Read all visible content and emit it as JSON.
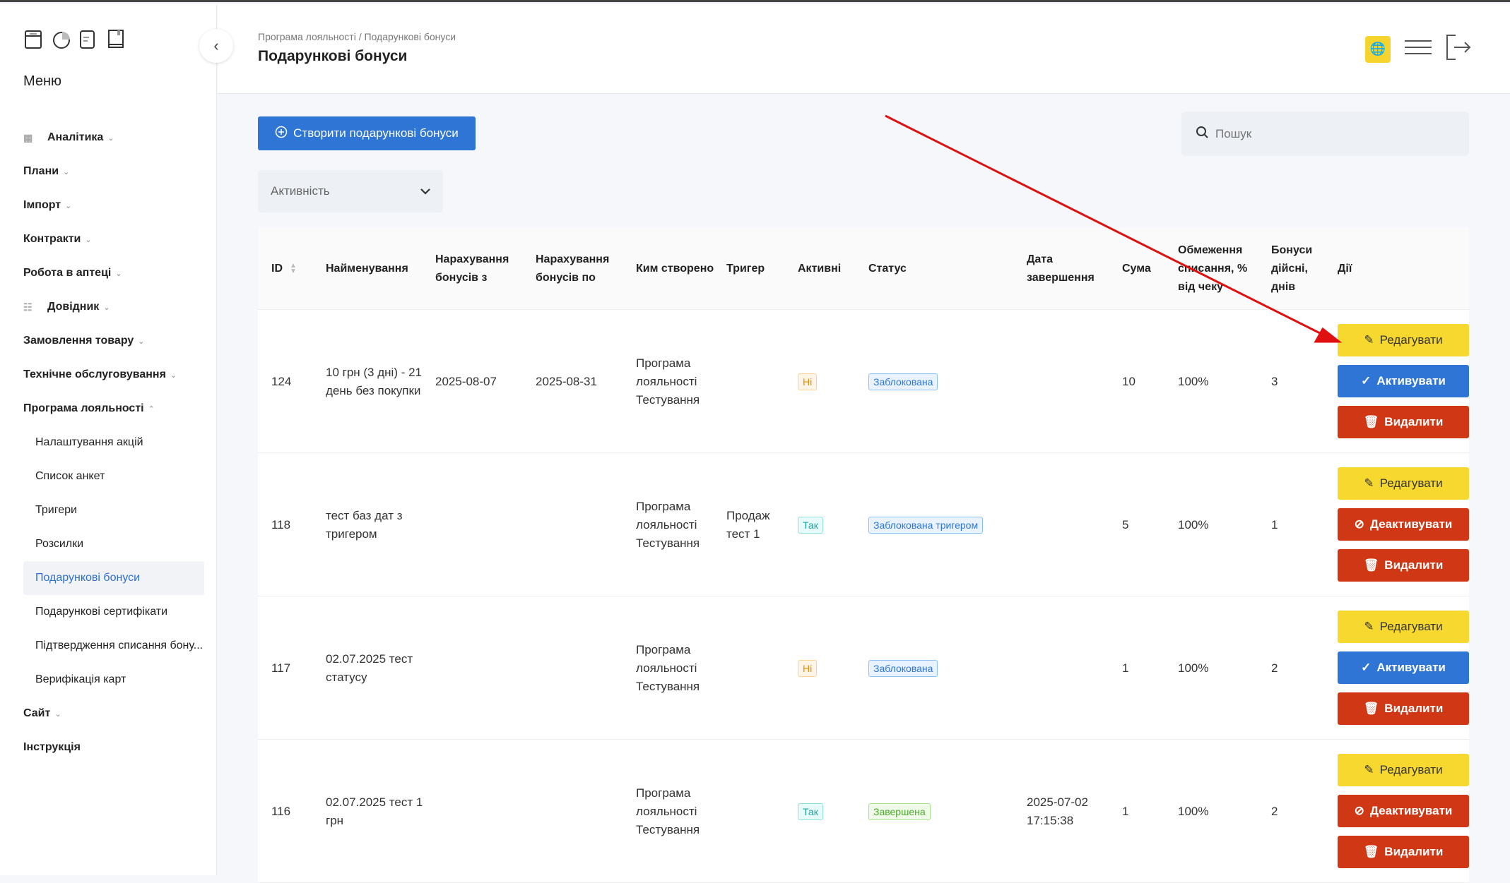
{
  "sidebar": {
    "menu_title": "Меню",
    "items": [
      {
        "label": "Аналітика",
        "icon": "grid-icon",
        "chevron": "⌄"
      },
      {
        "label": "Плани",
        "chevron": "⌄"
      },
      {
        "label": "Імпорт",
        "chevron": "⌄"
      },
      {
        "label": "Контракти",
        "chevron": "⌄"
      },
      {
        "label": "Робота в аптеці",
        "chevron": "⌄"
      },
      {
        "label": "Довідник",
        "icon": "list-icon",
        "chevron": "⌄"
      },
      {
        "label": "Замовлення товару",
        "chevron": "⌄"
      },
      {
        "label": "Технічне обслуговування",
        "chevron": "⌄"
      },
      {
        "label": "Програма лояльності",
        "chevron": "⌃"
      },
      {
        "label": "Налаштування акцій",
        "sub": true
      },
      {
        "label": "Список анкет",
        "sub": true
      },
      {
        "label": "Тригери",
        "sub": true
      },
      {
        "label": "Розсилки",
        "sub": true
      },
      {
        "label": "Подарункові бонуси",
        "sub": true,
        "active": true
      },
      {
        "label": "Подарункові сертифікати",
        "sub": true
      },
      {
        "label": "Підтвердження списання бону...",
        "sub": true
      },
      {
        "label": "Верифікація карт",
        "sub": true
      },
      {
        "label": "Сайт",
        "chevron": "⌄"
      },
      {
        "label": "Інструкція"
      }
    ]
  },
  "header": {
    "breadcrumb": "Програма лояльності / Подарункові бонуси",
    "title": "Подарункові бонуси"
  },
  "toolbar": {
    "create_label": "Створити подарункові бонуси",
    "search_placeholder": "Пошук",
    "filter_label": "Активність"
  },
  "table": {
    "columns": [
      "ID",
      "Найменування",
      "Нарахування бонусів з",
      "Нарахування бонусів по",
      "Ким створено",
      "Тригер",
      "Активні",
      "Статус",
      "Дата завершення",
      "Сума",
      "Обмеження списання, % від чеку",
      "Бонуси дійсні, днів",
      "Дії"
    ],
    "rows": [
      {
        "id": "124",
        "name": "10 грн (3 дні) - 21 день без покупки",
        "from": "2025-08-07",
        "to": "2025-08-31",
        "created": "Програма лояльності Тестування",
        "trigger": "",
        "active": "Ні",
        "status": "Заблокована",
        "end": "",
        "sum": "10",
        "limit": "100%",
        "days": "3",
        "toggle": "Активувати"
      },
      {
        "id": "118",
        "name": "тест баз дат з тригером",
        "from": "",
        "to": "",
        "created": "Програма лояльності Тестування",
        "trigger": "Продаж тест 1",
        "active": "Так",
        "status": "Заблокована тригером",
        "end": "",
        "sum": "5",
        "limit": "100%",
        "days": "1",
        "toggle": "Деактивувати"
      },
      {
        "id": "117",
        "name": "02.07.2025 тест статусу",
        "from": "",
        "to": "",
        "created": "Програма лояльності Тестування",
        "trigger": "",
        "active": "Ні",
        "status": "Заблокована",
        "end": "",
        "sum": "1",
        "limit": "100%",
        "days": "2",
        "toggle": "Активувати"
      },
      {
        "id": "116",
        "name": "02.07.2025 тест 1 грн",
        "from": "",
        "to": "",
        "created": "Програма лояльності Тестування",
        "trigger": "",
        "active": "Так",
        "status": "Завершена",
        "end": "2025-07-02 17:15:38",
        "sum": "1",
        "limit": "100%",
        "days": "2",
        "toggle": "Деактивувати"
      }
    ],
    "edit_label": "Редагувати",
    "delete_label": "Видалити"
  },
  "colors": {
    "primary": "#2e75d6",
    "edit": "#f7d82e",
    "danger": "#d03815",
    "annotation_arrow": "#e01010"
  }
}
